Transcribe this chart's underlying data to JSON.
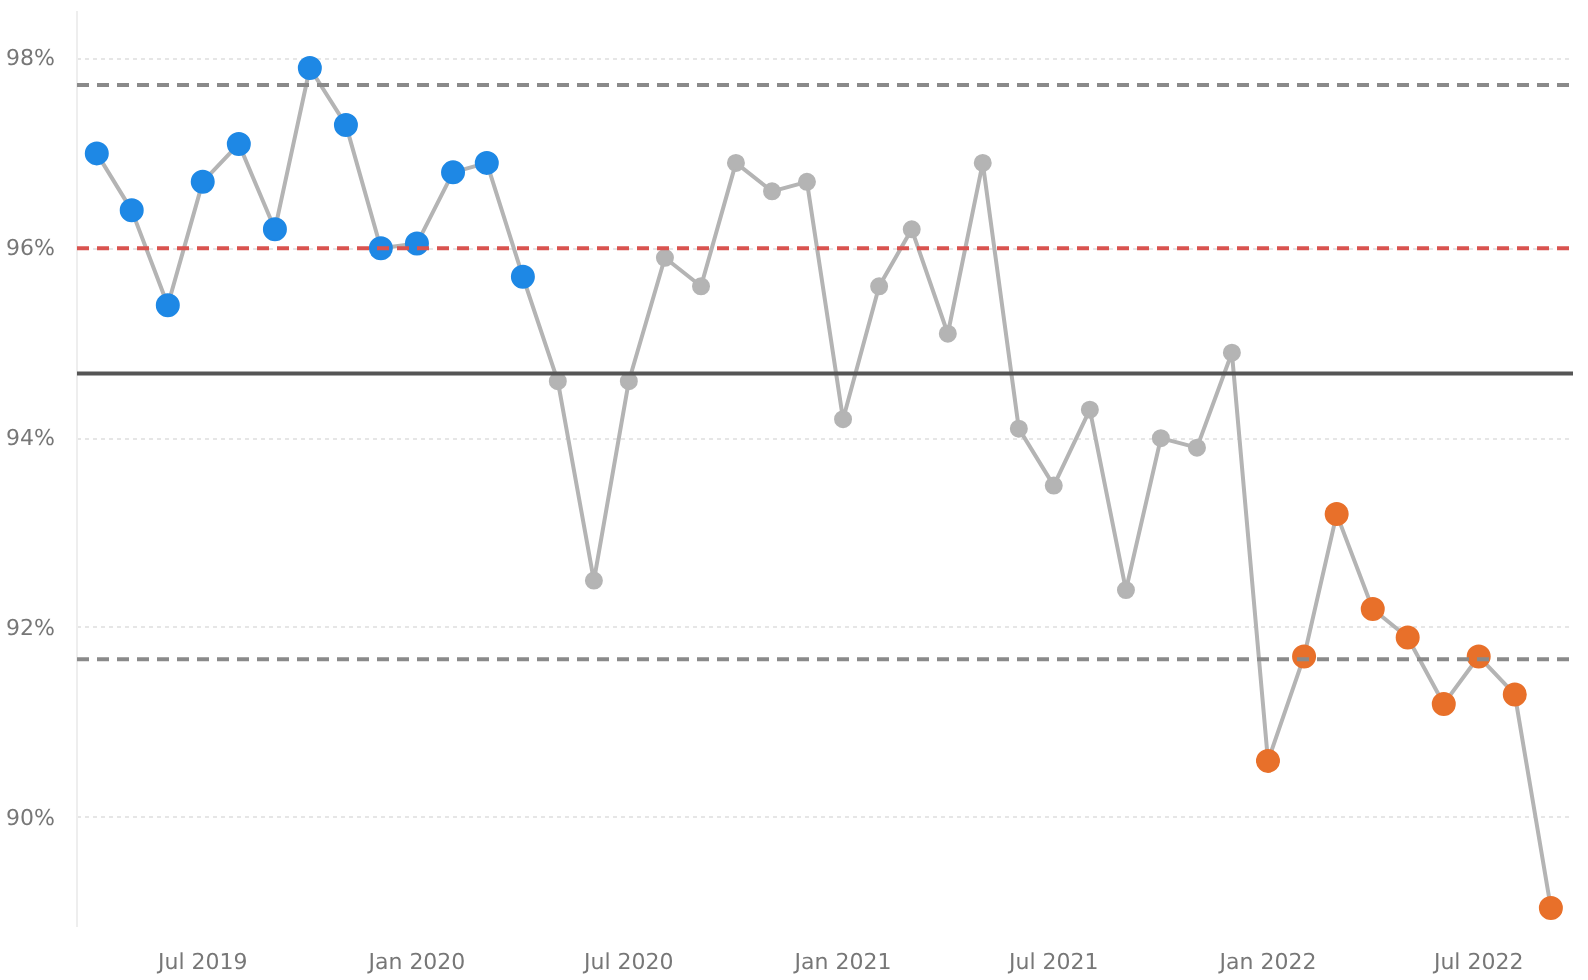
{
  "chart_data": {
    "type": "line",
    "x": [
      "2019-04",
      "2019-05",
      "2019-06",
      "2019-07",
      "2019-08",
      "2019-09",
      "2019-10",
      "2019-11",
      "2019-12",
      "2020-01",
      "2020-02",
      "2020-03",
      "2020-04",
      "2020-05",
      "2020-06",
      "2020-07",
      "2020-08",
      "2020-09",
      "2020-10",
      "2020-11",
      "2020-12",
      "2021-01",
      "2021-02",
      "2021-03",
      "2021-04",
      "2021-05",
      "2021-06",
      "2021-07",
      "2021-08",
      "2021-09",
      "2021-10",
      "2021-11",
      "2021-12",
      "2022-01",
      "2022-02",
      "2022-03",
      "2022-04",
      "2022-05",
      "2022-06",
      "2022-07",
      "2022-08",
      "2022-09"
    ],
    "series": [
      {
        "color": "#b4b4b4",
        "values": [
          97.0,
          96.4,
          95.4,
          96.7,
          97.1,
          96.2,
          97.9,
          97.3,
          96.0,
          96.05,
          96.8,
          96.9,
          95.7,
          94.6,
          92.5,
          94.6,
          95.9,
          95.6,
          96.9,
          96.6,
          96.7,
          94.2,
          95.6,
          96.2,
          95.1,
          96.9,
          94.1,
          93.5,
          94.3,
          92.4,
          94.0,
          93.9,
          94.9,
          90.6,
          91.7,
          93.2,
          92.2,
          91.9,
          91.2,
          91.7,
          91.3,
          89.05
        ],
        "colors": [
          "#1e88e5",
          "#1e88e5",
          "#1e88e5",
          "#1e88e5",
          "#1e88e5",
          "#1e88e5",
          "#1e88e5",
          "#1e88e5",
          "#1e88e5",
          "#1e88e5",
          "#1e88e5",
          "#1e88e5",
          "#1e88e5",
          "#b4b4b4",
          "#b4b4b4",
          "#b4b4b4",
          "#b4b4b4",
          "#b4b4b4",
          "#b4b4b4",
          "#b4b4b4",
          "#b4b4b4",
          "#b4b4b4",
          "#b4b4b4",
          "#b4b4b4",
          "#b4b4b4",
          "#b4b4b4",
          "#b4b4b4",
          "#b4b4b4",
          "#b4b4b4",
          "#b4b4b4",
          "#b4b4b4",
          "#b4b4b4",
          "#b4b4b4",
          "#e8702a",
          "#e8702a",
          "#e8702a",
          "#e8702a",
          "#e8702a",
          "#e8702a",
          "#e8702a",
          "#e8702a",
          "#e8702a"
        ]
      }
    ],
    "marker": "circle",
    "line_style": "solid",
    "xlim": [
      "2019-03-15",
      "2022-09-20"
    ],
    "xticks": [
      {
        "value": "2019-07",
        "label": "Jul 2019"
      },
      {
        "value": "2020-01",
        "label": "Jan 2020"
      },
      {
        "value": "2020-07",
        "label": "Jul 2020"
      },
      {
        "value": "2021-01",
        "label": "Jan 2021"
      },
      {
        "value": "2021-07",
        "label": "Jul 2021"
      },
      {
        "value": "2022-01",
        "label": "Jan 2022"
      },
      {
        "value": "2022-07",
        "label": "Jul 2022"
      }
    ],
    "ylim": [
      88.85,
      98.5
    ],
    "yticks": [
      {
        "value": 90,
        "label": "90%"
      },
      {
        "value": 92,
        "label": "92%"
      },
      {
        "value": 94,
        "label": "94%"
      },
      {
        "value": 96,
        "label": "96%"
      },
      {
        "value": 98,
        "label": "98%"
      }
    ],
    "ref_lines": [
      {
        "axis": "y",
        "value": 97.72,
        "color": "#8a8a8a",
        "line_style": "dashed"
      },
      {
        "axis": "y",
        "value": 96.0,
        "color": "#d9534f",
        "line_style": "dashed"
      },
      {
        "axis": "y",
        "value": 94.68,
        "color": "#555555",
        "line_style": "solid"
      },
      {
        "axis": "y",
        "value": 91.67,
        "color": "#8a8a8a",
        "line_style": "dashed"
      }
    ],
    "grid": "y"
  }
}
